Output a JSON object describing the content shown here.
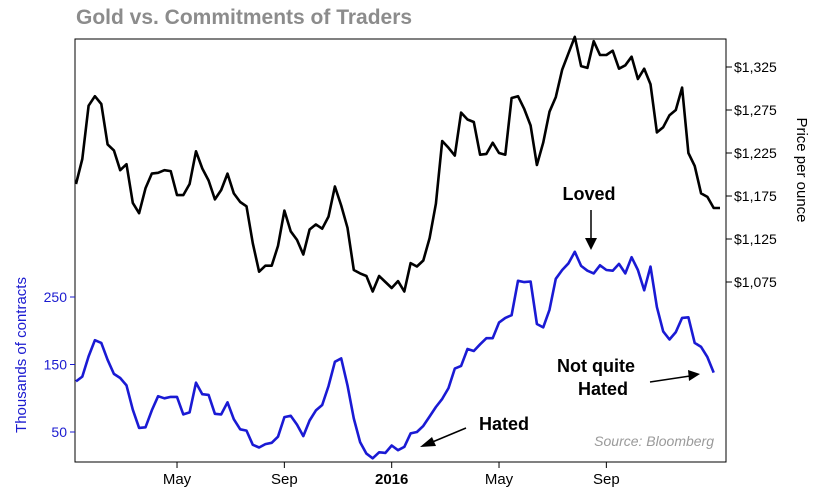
{
  "chart_data": {
    "type": "line",
    "title": "Gold vs. Commitments of Traders",
    "source": "Source: Bloomberg",
    "x_ticks": [
      {
        "label": "May",
        "index": 16,
        "bold": false
      },
      {
        "label": "Sep",
        "index": 33,
        "bold": false
      },
      {
        "label": "2016",
        "index": 50,
        "bold": true
      },
      {
        "label": "May",
        "index": 67,
        "bold": false
      },
      {
        "label": "Sep",
        "index": 84,
        "bold": false
      }
    ],
    "y_right": {
      "label": "Price per ounce",
      "ticks": [
        1075,
        1125,
        1175,
        1225,
        1275,
        1325
      ],
      "tick_labels": [
        "$1,075",
        "$1,125",
        "$1,175",
        "$1,225",
        "$1,275",
        "$1,325"
      ]
    },
    "y_left": {
      "label": "Thousands of contracts",
      "ticks": [
        50,
        150,
        250
      ],
      "tick_labels": [
        "50",
        "150",
        "250"
      ]
    },
    "series": [
      {
        "name": "Gold",
        "axis": "right",
        "color": "#000000",
        "values": [
          1189,
          1218,
          1280,
          1291,
          1282,
          1235,
          1228,
          1205,
          1212,
          1167,
          1155,
          1184,
          1201,
          1202,
          1205,
          1204,
          1176,
          1176,
          1189,
          1227,
          1207,
          1193,
          1171,
          1182,
          1201,
          1178,
          1168,
          1163,
          1120,
          1087,
          1094,
          1094,
          1117,
          1158,
          1134,
          1124,
          1107,
          1136,
          1142,
          1137,
          1151,
          1186,
          1164,
          1138,
          1089,
          1085,
          1082,
          1064,
          1082,
          1075,
          1068,
          1076,
          1064,
          1097,
          1093,
          1100,
          1126,
          1166,
          1239,
          1231,
          1222,
          1272,
          1264,
          1261,
          1223,
          1224,
          1237,
          1225,
          1223,
          1289,
          1291,
          1276,
          1257,
          1211,
          1237,
          1273,
          1290,
          1322,
          1341,
          1360,
          1326,
          1324,
          1355,
          1339,
          1339,
          1344,
          1323,
          1327,
          1337,
          1311,
          1323,
          1305,
          1249,
          1255,
          1269,
          1275,
          1301,
          1225,
          1210,
          1178,
          1174,
          1161,
          1161
        ]
      },
      {
        "name": "Commitments of Traders",
        "axis": "left",
        "color": "#1a1ad4",
        "values": [
          125,
          132,
          162,
          186,
          182,
          157,
          136,
          130,
          119,
          83,
          56,
          57,
          82,
          103,
          100,
          102,
          102,
          76,
          79,
          123,
          106,
          105,
          77,
          76,
          94,
          69,
          54,
          52,
          31,
          27,
          32,
          34,
          43,
          72,
          74,
          61,
          44,
          67,
          82,
          90,
          118,
          154,
          159,
          119,
          70,
          35,
          18,
          11,
          20,
          19,
          30,
          23,
          28,
          48,
          50,
          59,
          73,
          87,
          99,
          115,
          144,
          148,
          173,
          170,
          180,
          189,
          189,
          212,
          219,
          223,
          274,
          272,
          273,
          210,
          205,
          231,
          277,
          290,
          300,
          317,
          296,
          289,
          285,
          297,
          290,
          289,
          299,
          285,
          309,
          290,
          260,
          295,
          235,
          199,
          187,
          198,
          219,
          220,
          182,
          176,
          161,
          138
        ]
      }
    ],
    "annotations": [
      {
        "text": "Loved"
      },
      {
        "text": "Hated"
      },
      {
        "text": "Not quite"
      },
      {
        "text": "Hated"
      }
    ]
  }
}
